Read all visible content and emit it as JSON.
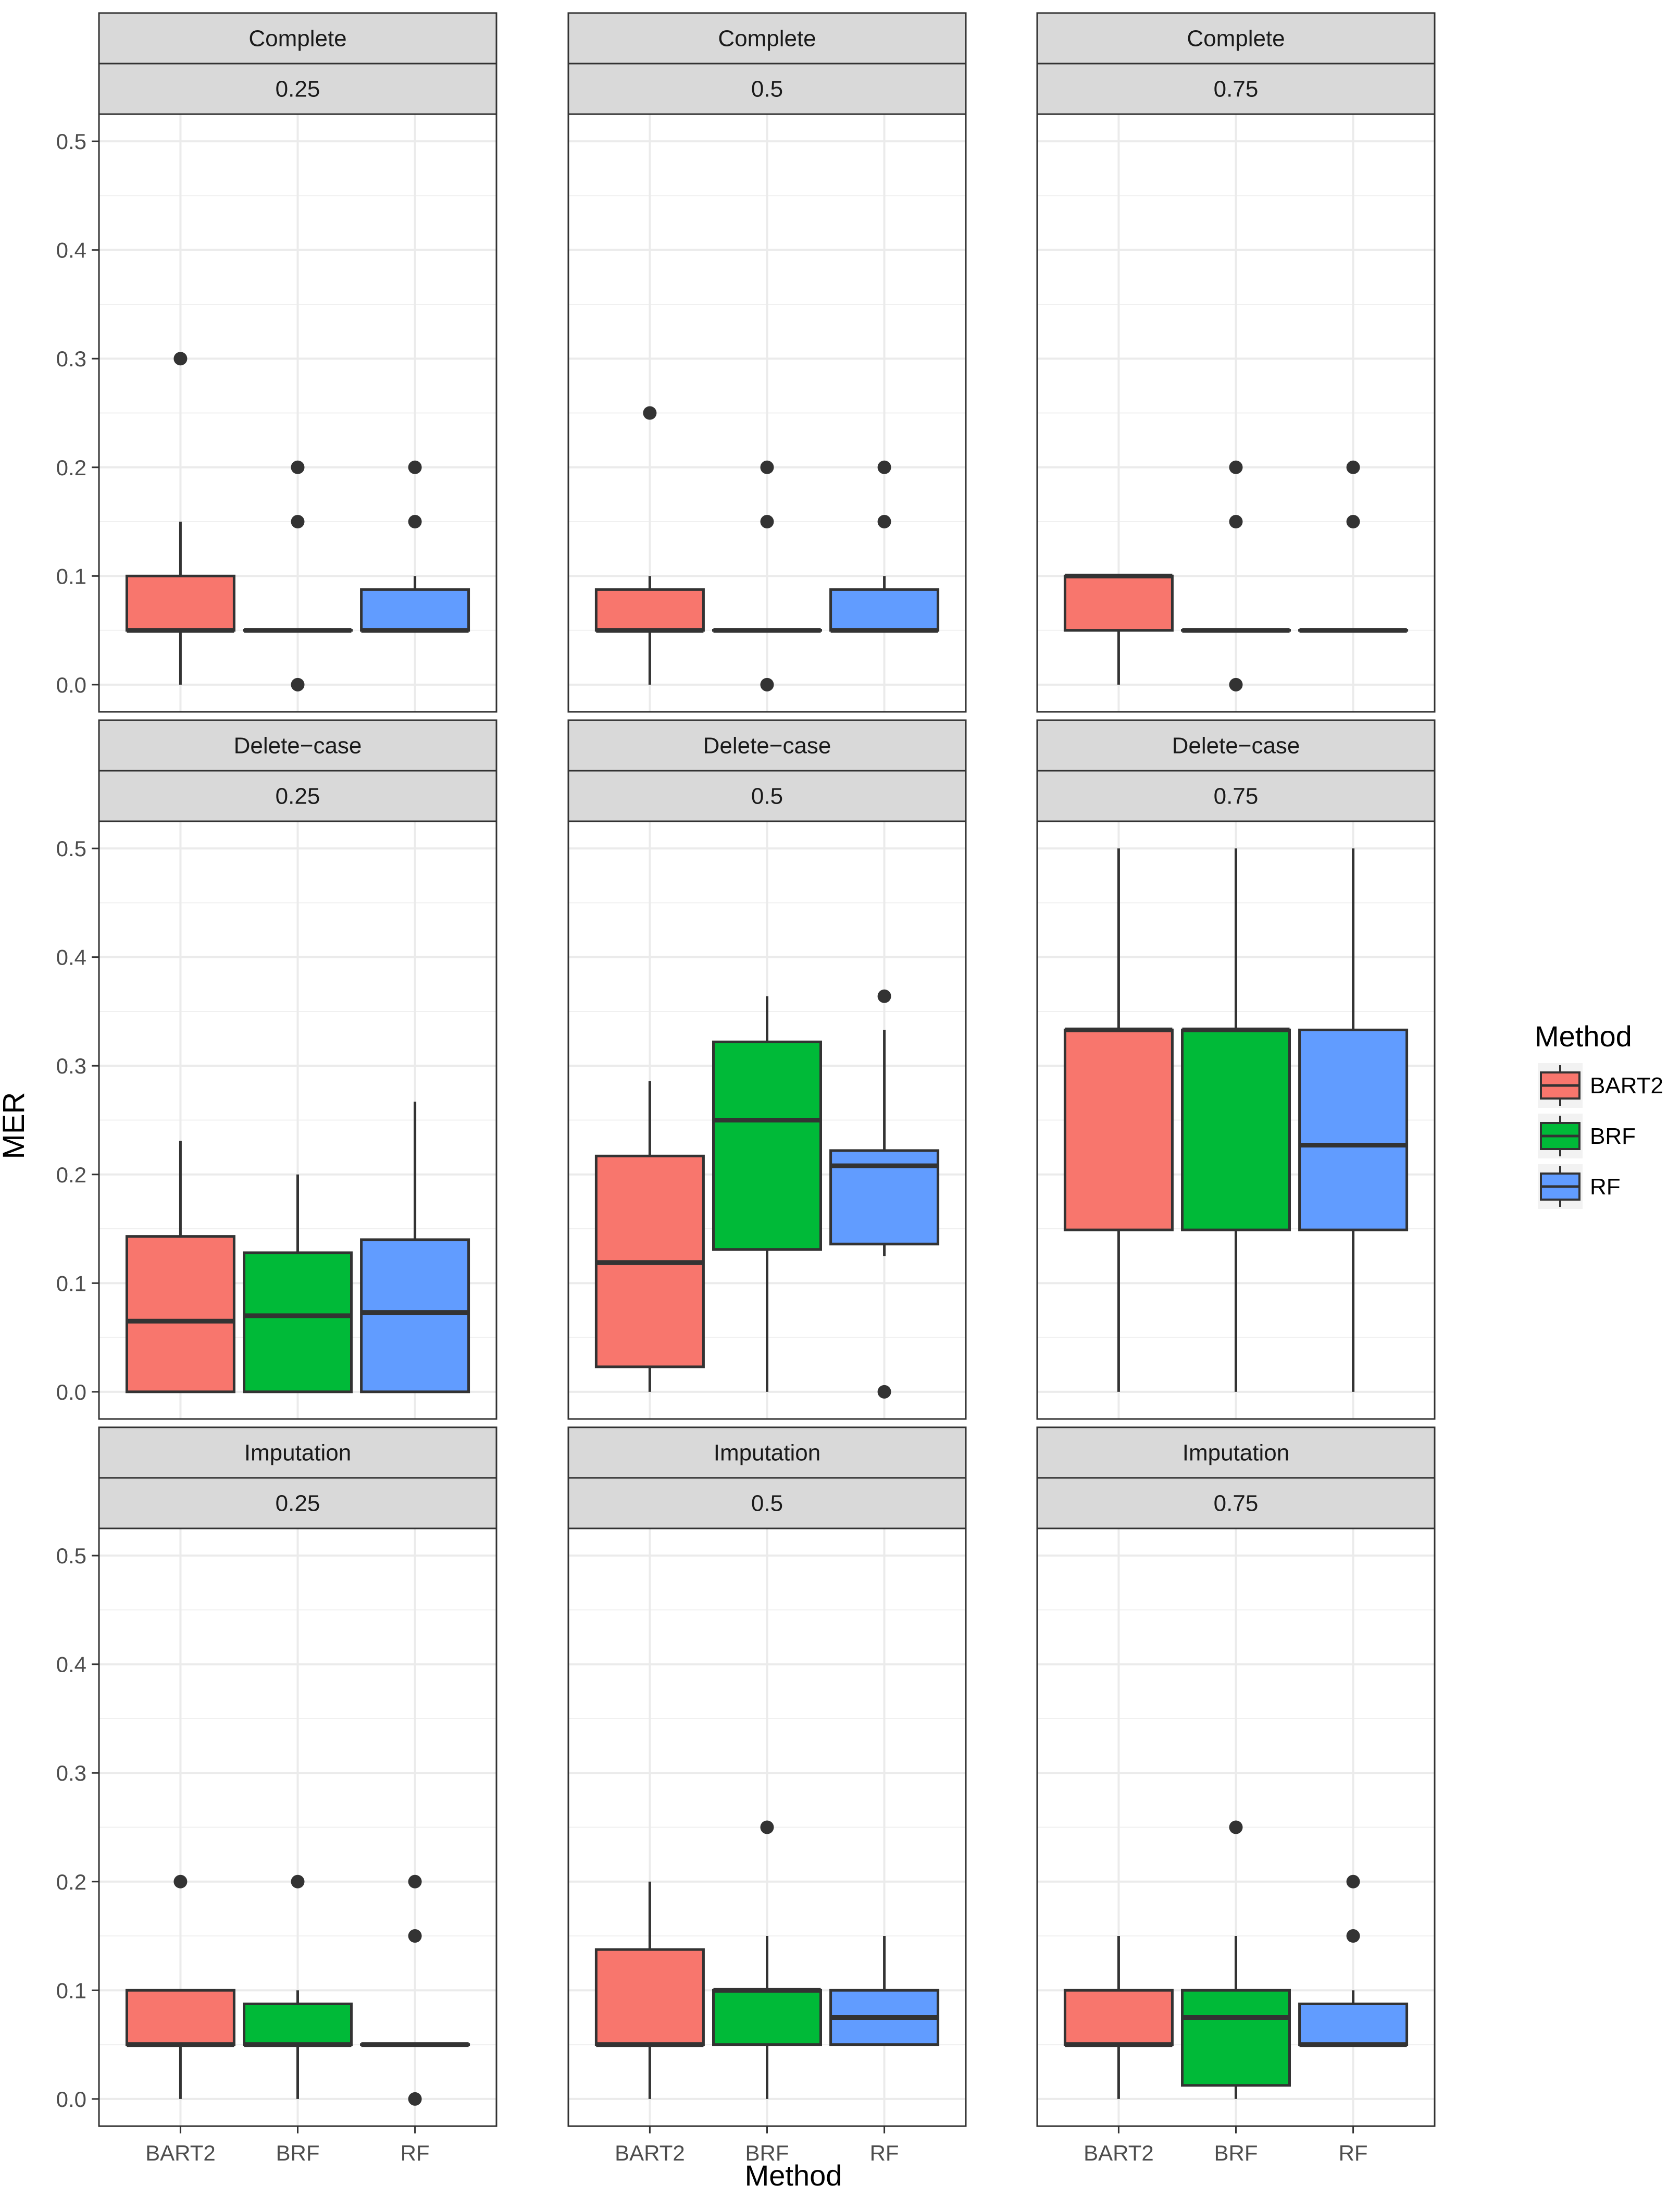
{
  "chart_data": {
    "type": "boxplot",
    "facet_rows": [
      "Complete",
      "Delete−case",
      "Imputation"
    ],
    "facet_cols": [
      "0.25",
      "0.5",
      "0.75"
    ],
    "categories": [
      "BART2",
      "BRF",
      "RF"
    ],
    "xlabel": "Method",
    "ylabel": "MER",
    "ylim": [
      -0.025,
      0.525
    ],
    "yticks": [
      0.0,
      0.1,
      0.2,
      0.3,
      0.4,
      0.5
    ],
    "ytick_labels": [
      "0.0",
      "0.1",
      "0.2",
      "0.3",
      "0.4",
      "0.5"
    ],
    "legend": {
      "title": "Method",
      "position": "right",
      "entries": [
        {
          "label": "BART2",
          "color": "#F8766D"
        },
        {
          "label": "BRF",
          "color": "#00BA38"
        },
        {
          "label": "RF",
          "color": "#619CFF"
        }
      ]
    },
    "panels": [
      {
        "row": "Complete",
        "col": "0.25",
        "boxes": [
          {
            "method": "BART2",
            "min": 0.0,
            "q1": 0.05,
            "median": 0.05,
            "q3": 0.1,
            "max": 0.15,
            "outliers": [
              0.3
            ]
          },
          {
            "method": "BRF",
            "min": 0.05,
            "q1": 0.05,
            "median": 0.05,
            "q3": 0.05,
            "max": 0.05,
            "outliers": [
              0.0,
              0.15,
              0.2
            ]
          },
          {
            "method": "RF",
            "min": 0.05,
            "q1": 0.05,
            "median": 0.05,
            "q3": 0.0875,
            "max": 0.1,
            "outliers": [
              0.15,
              0.2
            ]
          }
        ]
      },
      {
        "row": "Complete",
        "col": "0.5",
        "boxes": [
          {
            "method": "BART2",
            "min": 0.0,
            "q1": 0.05,
            "median": 0.05,
            "q3": 0.0875,
            "max": 0.1,
            "outliers": [
              0.25
            ]
          },
          {
            "method": "BRF",
            "min": 0.05,
            "q1": 0.05,
            "median": 0.05,
            "q3": 0.05,
            "max": 0.05,
            "outliers": [
              0.0,
              0.15,
              0.2
            ]
          },
          {
            "method": "RF",
            "min": 0.05,
            "q1": 0.05,
            "median": 0.05,
            "q3": 0.0875,
            "max": 0.1,
            "outliers": [
              0.15,
              0.2
            ]
          }
        ]
      },
      {
        "row": "Complete",
        "col": "0.75",
        "boxes": [
          {
            "method": "BART2",
            "min": 0.0,
            "q1": 0.05,
            "median": 0.1,
            "q3": 0.1,
            "max": 0.1,
            "outliers": []
          },
          {
            "method": "BRF",
            "min": 0.05,
            "q1": 0.05,
            "median": 0.05,
            "q3": 0.05,
            "max": 0.05,
            "outliers": [
              0.0,
              0.15,
              0.2
            ]
          },
          {
            "method": "RF",
            "min": 0.05,
            "q1": 0.05,
            "median": 0.05,
            "q3": 0.05,
            "max": 0.05,
            "outliers": [
              0.15,
              0.2
            ]
          }
        ]
      },
      {
        "row": "Delete−case",
        "col": "0.25",
        "boxes": [
          {
            "method": "BART2",
            "min": 0.0,
            "q1": 0.0,
            "median": 0.065,
            "q3": 0.143,
            "max": 0.231,
            "outliers": []
          },
          {
            "method": "BRF",
            "min": 0.0,
            "q1": 0.0,
            "median": 0.07,
            "q3": 0.128,
            "max": 0.2,
            "outliers": []
          },
          {
            "method": "RF",
            "min": 0.0,
            "q1": 0.0,
            "median": 0.073,
            "q3": 0.14,
            "max": 0.267,
            "outliers": []
          }
        ]
      },
      {
        "row": "Delete−case",
        "col": "0.5",
        "boxes": [
          {
            "method": "BART2",
            "min": 0.0,
            "q1": 0.023,
            "median": 0.119,
            "q3": 0.217,
            "max": 0.286,
            "outliers": []
          },
          {
            "method": "BRF",
            "min": 0.0,
            "q1": 0.131,
            "median": 0.25,
            "q3": 0.322,
            "max": 0.364,
            "outliers": []
          },
          {
            "method": "RF",
            "min": 0.125,
            "q1": 0.136,
            "median": 0.208,
            "q3": 0.222,
            "max": 0.333,
            "outliers": [
              0.0,
              0.364
            ]
          }
        ]
      },
      {
        "row": "Delete−case",
        "col": "0.75",
        "boxes": [
          {
            "method": "BART2",
            "min": 0.0,
            "q1": 0.149,
            "median": 0.333,
            "q3": 0.333,
            "max": 0.5,
            "outliers": []
          },
          {
            "method": "BRF",
            "min": 0.0,
            "q1": 0.149,
            "median": 0.333,
            "q3": 0.333,
            "max": 0.5,
            "outliers": []
          },
          {
            "method": "RF",
            "min": 0.0,
            "q1": 0.149,
            "median": 0.227,
            "q3": 0.333,
            "max": 0.5,
            "outliers": []
          }
        ]
      },
      {
        "row": "Imputation",
        "col": "0.25",
        "boxes": [
          {
            "method": "BART2",
            "min": 0.0,
            "q1": 0.05,
            "median": 0.05,
            "q3": 0.1,
            "max": 0.1,
            "outliers": [
              0.2
            ]
          },
          {
            "method": "BRF",
            "min": 0.0,
            "q1": 0.05,
            "median": 0.05,
            "q3": 0.0875,
            "max": 0.1,
            "outliers": [
              0.2
            ]
          },
          {
            "method": "RF",
            "min": 0.05,
            "q1": 0.05,
            "median": 0.05,
            "q3": 0.05,
            "max": 0.05,
            "outliers": [
              0.0,
              0.15,
              0.2
            ]
          }
        ]
      },
      {
        "row": "Imputation",
        "col": "0.5",
        "boxes": [
          {
            "method": "BART2",
            "min": 0.0,
            "q1": 0.05,
            "median": 0.05,
            "q3": 0.1375,
            "max": 0.2,
            "outliers": []
          },
          {
            "method": "BRF",
            "min": 0.0,
            "q1": 0.05,
            "median": 0.1,
            "q3": 0.1,
            "max": 0.15,
            "outliers": [
              0.25
            ]
          },
          {
            "method": "RF",
            "min": 0.05,
            "q1": 0.05,
            "median": 0.075,
            "q3": 0.1,
            "max": 0.15,
            "outliers": []
          }
        ]
      },
      {
        "row": "Imputation",
        "col": "0.75",
        "boxes": [
          {
            "method": "BART2",
            "min": 0.0,
            "q1": 0.05,
            "median": 0.05,
            "q3": 0.1,
            "max": 0.15,
            "outliers": []
          },
          {
            "method": "BRF",
            "min": 0.0,
            "q1": 0.0125,
            "median": 0.075,
            "q3": 0.1,
            "max": 0.15,
            "outliers": [
              0.25
            ]
          },
          {
            "method": "RF",
            "min": 0.05,
            "q1": 0.05,
            "median": 0.05,
            "q3": 0.0875,
            "max": 0.1,
            "outliers": [
              0.15,
              0.2
            ]
          }
        ]
      }
    ]
  }
}
